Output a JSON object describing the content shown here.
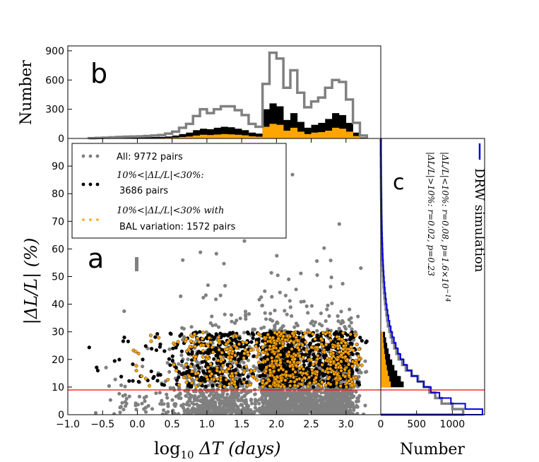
{
  "colors": {
    "all": "#808080",
    "black": "#000000",
    "orange": "#ffa500",
    "red": "#ff0000",
    "blue": "#0000dd"
  },
  "chart_data": [
    {
      "panel": "a",
      "type": "scatter",
      "panel_label": "a",
      "xlabel_main": "log",
      "xlabel_sub": "10",
      "xlabel_rest": " ΔT (days)",
      "ylabel": "|ΔL/L| (%)",
      "xlim": [
        -1.0,
        3.5
      ],
      "ylim": [
        0,
        100
      ],
      "xticks": [
        -1.0,
        -0.5,
        0.0,
        0.5,
        1.0,
        1.5,
        2.0,
        2.5,
        3.0
      ],
      "xtick_labels": [
        "−1.0",
        "−0.5",
        "0.0",
        "0.5",
        "1.0",
        "1.5",
        "2.0",
        "2.5",
        "3.0"
      ],
      "yticks": [
        0,
        10,
        20,
        30,
        40,
        50,
        60,
        70,
        80,
        90
      ],
      "threshold_line": 10,
      "legend": {
        "all": "All: 9772 pairs",
        "black_line1": "10%<|ΔL/L|<30%:",
        "black_line2": "3686 pairs",
        "orange_line1": "10%<|ΔL/L|<30% with",
        "orange_line2": "BAL variation: 1572 pairs"
      },
      "series": [
        {
          "name": "All",
          "count": 9772,
          "x_range": [
            -0.7,
            3.2
          ],
          "y_range": [
            0,
            100
          ]
        },
        {
          "name": "10%<|ΔL/L|<30%",
          "count": 3686,
          "x_range": [
            -0.7,
            3.2
          ],
          "y_range": [
            10,
            30
          ]
        },
        {
          "name": "10%<|ΔL/L|<30% with BAL variation",
          "count": 1572,
          "x_range": [
            -0.1,
            3.2
          ],
          "y_range": [
            10,
            30
          ]
        }
      ]
    },
    {
      "panel": "b",
      "type": "histogram",
      "panel_label": "b",
      "ylabel": "Number",
      "ylim": [
        0,
        950
      ],
      "yticks": [
        0,
        300,
        600,
        900
      ],
      "bin_edges": [
        -0.7,
        -0.6,
        -0.5,
        -0.4,
        -0.3,
        -0.2,
        -0.1,
        0.0,
        0.1,
        0.2,
        0.3,
        0.4,
        0.5,
        0.6,
        0.7,
        0.8,
        0.9,
        1.0,
        1.1,
        1.2,
        1.3,
        1.4,
        1.5,
        1.6,
        1.7,
        1.8,
        1.9,
        2.0,
        2.1,
        2.2,
        2.3,
        2.4,
        2.5,
        2.6,
        2.7,
        2.8,
        2.9,
        3.0,
        3.1,
        3.2,
        3.3
      ],
      "series": [
        {
          "name": "All",
          "values": [
            3,
            5,
            8,
            12,
            15,
            18,
            20,
            22,
            25,
            30,
            35,
            50,
            70,
            110,
            150,
            230,
            300,
            260,
            300,
            330,
            330,
            290,
            240,
            150,
            120,
            560,
            880,
            820,
            520,
            700,
            470,
            320,
            380,
            420,
            520,
            600,
            580,
            400,
            160,
            30
          ]
        },
        {
          "name": "10%<|ΔL/L|<30%",
          "values": [
            2,
            3,
            5,
            6,
            7,
            8,
            9,
            10,
            12,
            14,
            16,
            20,
            30,
            45,
            60,
            85,
            100,
            95,
            110,
            120,
            115,
            100,
            85,
            60,
            50,
            300,
            360,
            330,
            190,
            260,
            170,
            110,
            140,
            160,
            200,
            260,
            240,
            160,
            60,
            10
          ]
        },
        {
          "name": "BAL variation",
          "values": [
            0,
            0,
            0,
            0,
            0,
            0,
            1,
            2,
            3,
            4,
            5,
            7,
            10,
            15,
            20,
            30,
            38,
            35,
            40,
            45,
            42,
            38,
            32,
            22,
            18,
            120,
            150,
            140,
            80,
            110,
            70,
            45,
            60,
            65,
            80,
            110,
            100,
            70,
            25,
            5
          ]
        }
      ]
    },
    {
      "panel": "c",
      "type": "histogram-horizontal",
      "panel_label": "c",
      "xlabel": "Number",
      "xlim": [
        0,
        1450
      ],
      "xticks": [
        0,
        500,
        1000
      ],
      "ylim": [
        0,
        100
      ],
      "legend": "DRW simulation",
      "stats_line1": "|ΔL/L|<10%: r=0.08, p=1.6×10",
      "stats_line1_exp": "−14",
      "stats_line2": "|ΔL/L|>10%: r=0.02, p=0.23",
      "bin_edges": [
        0,
        2,
        4,
        6,
        8,
        10,
        12,
        14,
        16,
        18,
        20,
        22,
        24,
        26,
        28,
        30,
        32,
        34,
        36,
        38,
        40,
        42,
        44,
        46,
        48,
        50,
        52,
        54,
        56,
        58,
        60,
        62,
        64,
        66,
        68,
        70,
        72,
        74,
        76,
        78,
        80,
        82,
        84,
        86,
        88,
        90,
        92,
        94,
        96,
        98,
        100
      ],
      "series": [
        {
          "name": "All",
          "values": [
            1150,
            1000,
            850,
            760,
            680,
            600,
            520,
            430,
            350,
            300,
            250,
            220,
            190,
            160,
            140,
            120,
            100,
            90,
            80,
            70,
            60,
            52,
            45,
            40,
            35,
            32,
            28,
            25,
            22,
            20,
            18,
            16,
            14,
            12,
            11,
            10,
            9,
            8,
            7,
            6,
            5,
            4,
            4,
            3,
            3,
            2,
            2,
            1,
            1,
            1
          ]
        },
        {
          "name": "10%<|ΔL/L|<30%",
          "values": [
            0,
            0,
            0,
            0,
            0,
            320,
            280,
            230,
            190,
            160,
            130,
            110,
            90,
            75,
            60,
            0,
            0,
            0,
            0,
            0,
            0,
            0,
            0,
            0,
            0,
            0,
            0,
            0,
            0,
            0,
            0,
            0,
            0,
            0,
            0,
            0,
            0,
            0,
            0,
            0,
            0,
            0,
            0,
            0,
            0,
            0,
            0,
            0,
            0,
            0
          ]
        },
        {
          "name": "BAL variation",
          "values": [
            0,
            0,
            0,
            0,
            0,
            140,
            120,
            100,
            85,
            70,
            60,
            50,
            42,
            35,
            30,
            0,
            0,
            0,
            0,
            0,
            0,
            0,
            0,
            0,
            0,
            0,
            0,
            0,
            0,
            0,
            0,
            0,
            0,
            0,
            0,
            0,
            0,
            0,
            0,
            0,
            0,
            0,
            0,
            0,
            0,
            0,
            0,
            0,
            0,
            0
          ]
        },
        {
          "name": "DRW simulation",
          "values": [
            1420,
            1180,
            980,
            820,
            700,
            600,
            510,
            430,
            370,
            320,
            275,
            240,
            210,
            185,
            160,
            140,
            122,
            108,
            95,
            84,
            74,
            66,
            58,
            52,
            46,
            41,
            36,
            32,
            28,
            25,
            22,
            19,
            17,
            15,
            13,
            11,
            10,
            9,
            8,
            7,
            6,
            5,
            4,
            3,
            3,
            2,
            2,
            1,
            1,
            1
          ]
        }
      ]
    }
  ]
}
